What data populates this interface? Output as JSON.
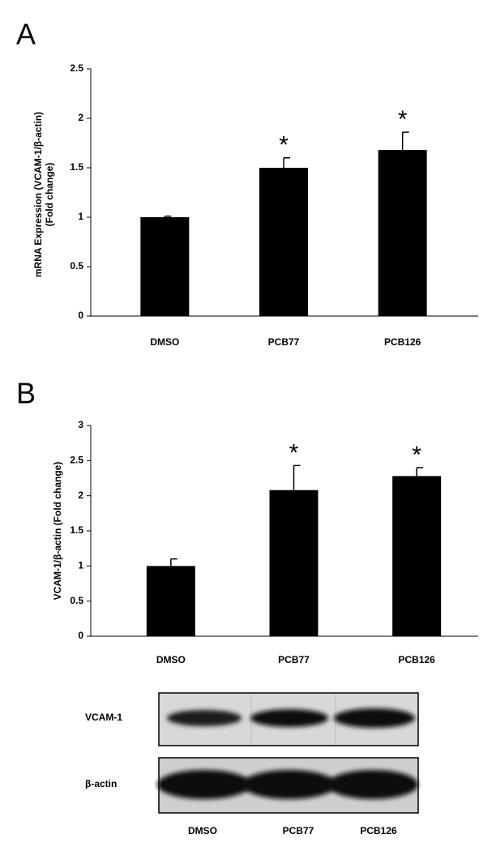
{
  "chart_data": [
    {
      "type": "bar",
      "panel": "A",
      "ylabel": [
        "mRNA Expression (VCAM-1/β-actin)",
        "(Fold change)"
      ],
      "categories": [
        "DMSO",
        "PCB77",
        "PCB126"
      ],
      "values": [
        1.0,
        1.5,
        1.68
      ],
      "errors": [
        0.01,
        0.1,
        0.18
      ],
      "annotations": [
        null,
        "*",
        "*"
      ],
      "color": "#000000",
      "ylim": [
        0,
        2.5
      ],
      "yticks": [
        0,
        0.5,
        1,
        1.5,
        2,
        2.5
      ],
      "grid": false
    },
    {
      "type": "bar",
      "panel": "B",
      "ylabel": [
        "VCAM-1/β-actin (Fold change)"
      ],
      "categories": [
        "DMSO",
        "PCB77",
        "PCB126"
      ],
      "values": [
        1.0,
        2.08,
        2.28
      ],
      "errors": [
        0.1,
        0.35,
        0.12
      ],
      "annotations": [
        null,
        "*",
        "*"
      ],
      "color": "#000000",
      "ylim": [
        0,
        3
      ],
      "yticks": [
        0,
        0.5,
        1,
        1.5,
        2,
        2.5,
        3
      ],
      "grid": false
    }
  ],
  "blot": {
    "rows": [
      "VCAM-1",
      "β-actin"
    ],
    "lanes": [
      "DMSO",
      "PCB77",
      "PCB126"
    ]
  }
}
